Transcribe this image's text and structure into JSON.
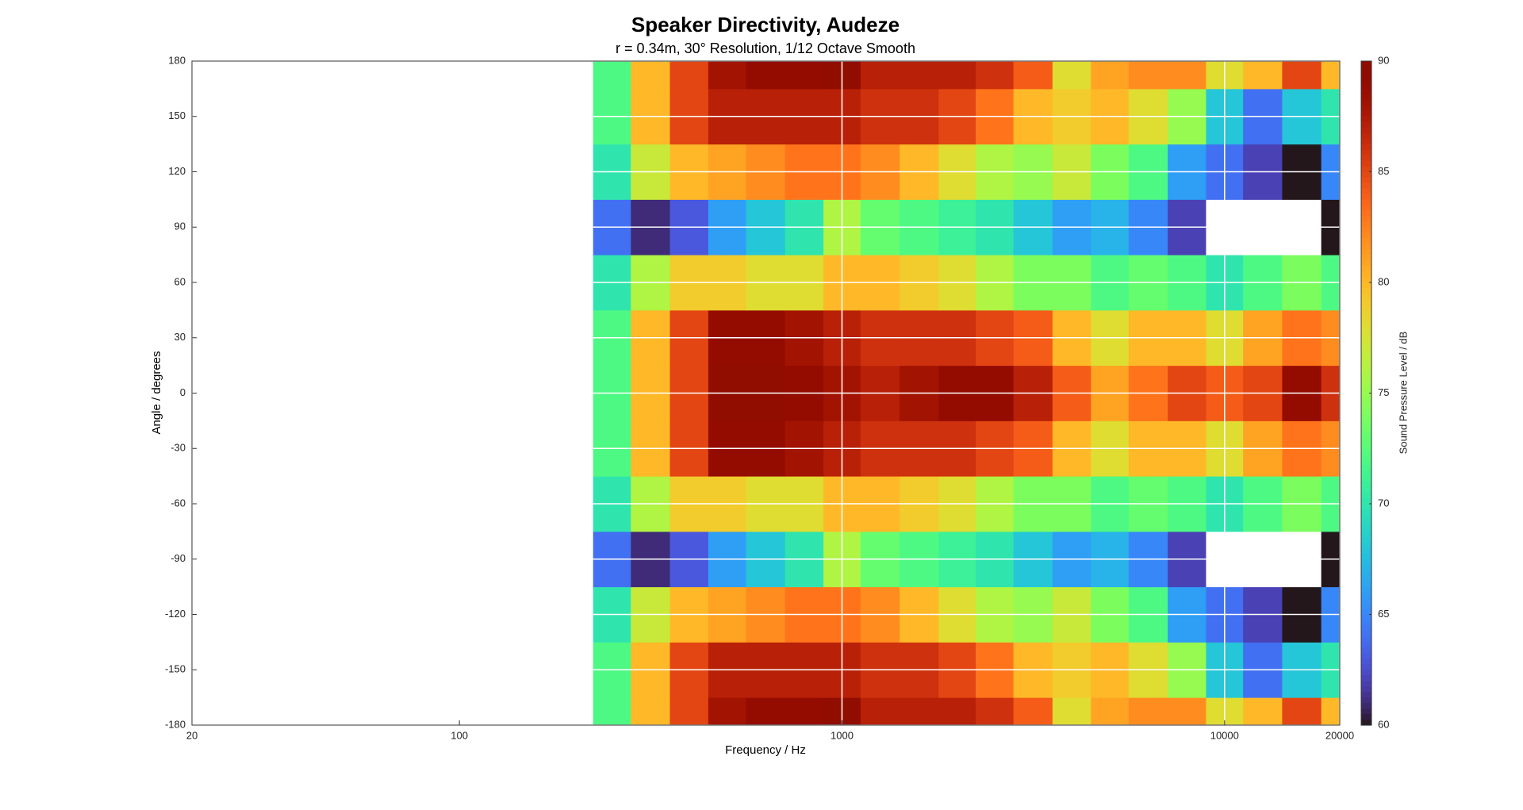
{
  "chart_data": {
    "type": "contour",
    "title": "Speaker Directivity, Audeze",
    "subtitle": "r = 0.34m, 30° Resolution, 1/12 Octave Smooth",
    "x_label": "Frequency / Hz",
    "y_label": "Angle / degrees",
    "colorbar_label": "Sound Pressure Level / dB",
    "colormap": "turbo",
    "x_scale": "log",
    "grid": true,
    "x": [
      200,
      250,
      315,
      400,
      500,
      630,
      800,
      1000,
      1250,
      1600,
      2000,
      2500,
      3150,
      4000,
      5000,
      6300,
      8000,
      10000,
      12500,
      16000,
      20000
    ],
    "y": [
      -180,
      -150,
      -120,
      -90,
      -60,
      -30,
      0,
      30,
      60,
      90,
      120,
      150,
      180
    ],
    "z": [
      [
        58,
        72,
        80,
        85,
        88,
        89,
        89,
        90,
        87,
        87,
        87,
        86,
        84,
        78,
        81,
        82,
        82,
        78,
        80,
        85,
        80
      ],
      [
        58,
        72,
        80,
        85,
        87,
        87,
        87,
        87,
        86,
        86,
        85,
        83,
        80,
        79,
        80,
        78,
        75,
        68,
        64,
        68,
        70
      ],
      [
        58,
        70,
        77,
        80,
        81,
        82,
        83,
        83,
        82,
        80,
        78,
        76,
        75,
        77,
        74,
        72,
        66,
        64,
        62,
        60,
        65
      ],
      [
        57,
        64,
        61,
        63,
        66,
        68,
        70,
        76,
        73,
        72,
        71,
        70,
        68,
        66,
        67,
        65,
        62,
        58,
        55,
        57,
        60
      ],
      [
        58,
        70,
        76,
        79,
        79,
        78,
        78,
        80,
        80,
        79,
        78,
        76,
        74,
        74,
        72,
        73,
        72,
        70,
        72,
        74,
        72
      ],
      [
        58,
        72,
        80,
        85,
        89,
        89,
        88,
        87,
        86,
        86,
        86,
        85,
        84,
        80,
        78,
        80,
        80,
        78,
        81,
        83,
        82
      ],
      [
        58,
        72,
        80,
        85,
        90,
        90,
        89,
        88,
        87,
        88,
        89,
        89,
        87,
        84,
        81,
        83,
        85,
        84,
        85,
        89,
        86
      ],
      [
        58,
        72,
        80,
        85,
        89,
        89,
        88,
        87,
        86,
        86,
        86,
        85,
        84,
        80,
        78,
        80,
        80,
        78,
        81,
        83,
        82
      ],
      [
        58,
        70,
        76,
        79,
        79,
        78,
        78,
        80,
        80,
        79,
        78,
        76,
        74,
        74,
        72,
        73,
        72,
        70,
        72,
        74,
        72
      ],
      [
        57,
        64,
        61,
        63,
        66,
        68,
        70,
        76,
        73,
        72,
        71,
        70,
        68,
        66,
        67,
        65,
        62,
        58,
        55,
        57,
        60
      ],
      [
        58,
        70,
        77,
        80,
        81,
        82,
        83,
        83,
        82,
        80,
        78,
        76,
        75,
        77,
        74,
        72,
        66,
        64,
        62,
        60,
        65
      ],
      [
        58,
        72,
        80,
        85,
        87,
        87,
        87,
        87,
        86,
        86,
        85,
        83,
        80,
        79,
        80,
        78,
        75,
        68,
        64,
        68,
        70
      ],
      [
        58,
        72,
        80,
        85,
        88,
        89,
        89,
        90,
        87,
        87,
        87,
        86,
        84,
        78,
        81,
        82,
        82,
        78,
        80,
        85,
        80
      ]
    ],
    "xlim": [
      20,
      20000
    ],
    "xticks": [
      20,
      100,
      1000,
      10000,
      20000
    ],
    "ylim": [
      -180,
      180
    ],
    "yticks": [
      -180,
      -150,
      -120,
      -90,
      -60,
      -30,
      0,
      30,
      60,
      90,
      120,
      150,
      180
    ],
    "clim": [
      60,
      90
    ],
    "cticks": [
      60,
      65,
      70,
      75,
      80,
      85,
      90
    ]
  }
}
